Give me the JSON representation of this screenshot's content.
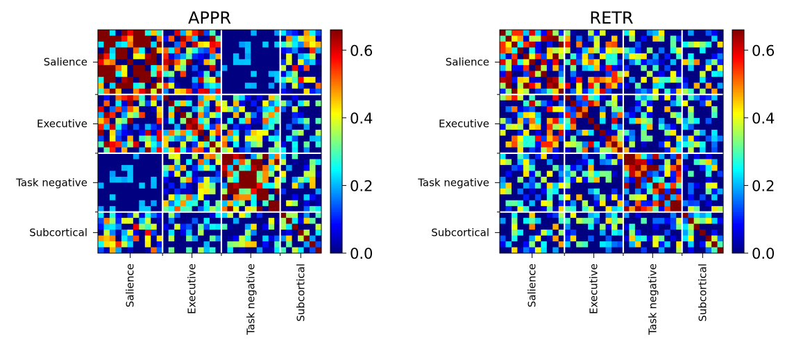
{
  "chart_data": [
    {
      "type": "heatmap",
      "title": "APPR",
      "groups": [
        "Salience",
        "Executive",
        "Task negative",
        "Subcortical"
      ],
      "group_sizes": [
        11,
        10,
        10,
        7
      ],
      "colormap": "jet",
      "clim": [
        0,
        0.66
      ],
      "colorbar_ticks": [
        0.0,
        0.2,
        0.4,
        0.6
      ],
      "colorbar_tick_labels": [
        "0.0",
        "0.2",
        "0.4",
        "0.6"
      ],
      "block_means": [
        [
          0.55,
          0.3,
          0.04,
          0.25
        ],
        [
          0.3,
          0.28,
          0.18,
          0.08
        ],
        [
          0.04,
          0.18,
          0.5,
          0.1
        ],
        [
          0.25,
          0.08,
          0.1,
          0.12
        ]
      ],
      "grid_separators": "white",
      "seed": 7
    },
    {
      "type": "heatmap",
      "title": "RETR",
      "groups": [
        "Salience",
        "Executive",
        "Task negative",
        "Subcortical"
      ],
      "group_sizes": [
        11,
        10,
        10,
        7
      ],
      "colormap": "jet",
      "clim": [
        0,
        0.66
      ],
      "colorbar_ticks": [
        0.0,
        0.2,
        0.4,
        0.6
      ],
      "colorbar_tick_labels": [
        "0.0",
        "0.2",
        "0.4",
        "0.6"
      ],
      "block_means": [
        [
          0.4,
          0.28,
          0.1,
          0.15
        ],
        [
          0.28,
          0.3,
          0.12,
          0.1
        ],
        [
          0.1,
          0.12,
          0.38,
          0.1
        ],
        [
          0.15,
          0.1,
          0.1,
          0.12
        ]
      ],
      "grid_separators": "white",
      "seed": 23
    }
  ]
}
